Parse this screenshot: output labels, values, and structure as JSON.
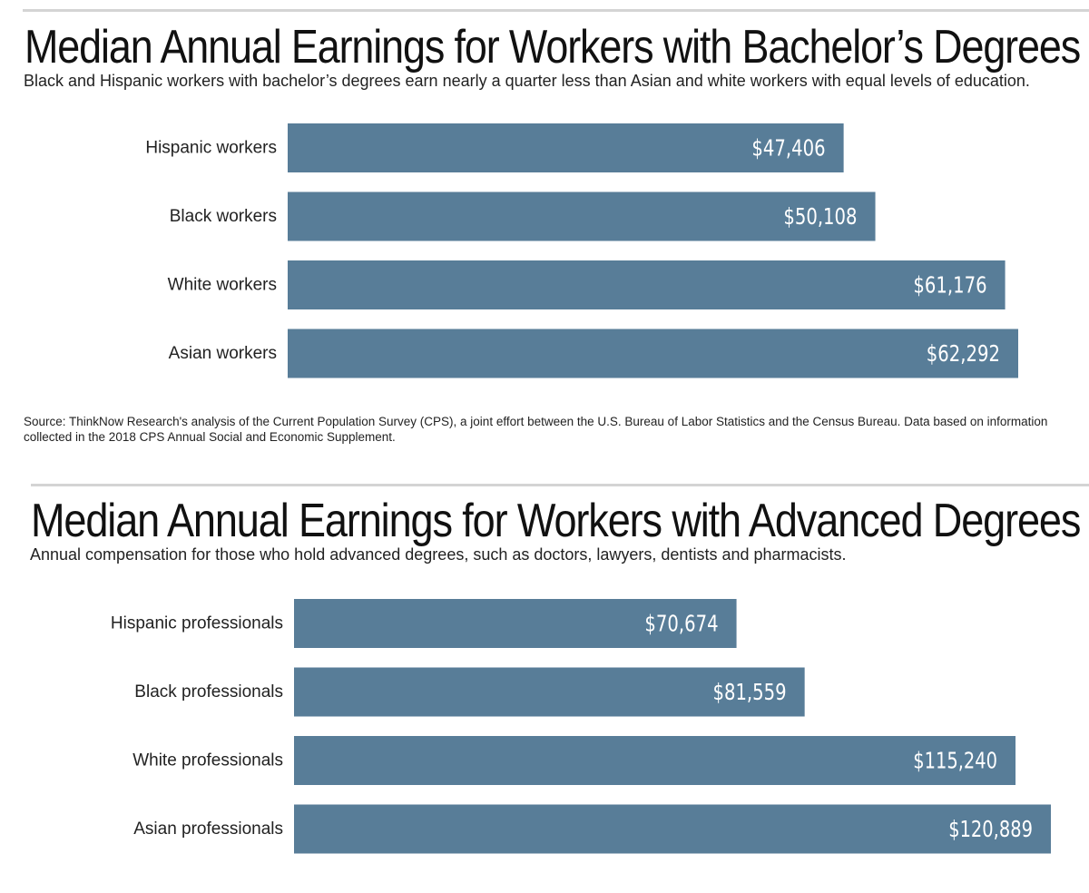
{
  "colors": {
    "bar": "#587d98",
    "bar_label": "#ffffff",
    "rule": "#d4d4d4"
  },
  "charts": [
    {
      "title": "Median Annual Earnings for Workers with Bachelor’s Degrees",
      "subtitle": "Black and Hispanic workers with bachelor’s degrees earn nearly a quarter less than Asian and white workers with equal levels of education.",
      "source": "Source: ThinkNow Research's analysis of the Current Population Survey (CPS), a joint effort between the U.S. Bureau of Labor Statistics and the Census Bureau. Data based on information collected in the 2018 CPS Annual Social and Economic Supplement."
    },
    {
      "title": "Median Annual Earnings for Workers with Advanced Degrees",
      "subtitle": "Annual compensation for those who hold advanced degrees, such as doctors, lawyers, dentists and pharmacists."
    }
  ],
  "chart_data": [
    {
      "type": "bar",
      "orientation": "horizontal",
      "title": "Median Annual Earnings for Workers with Bachelor’s Degrees",
      "categories": [
        "Hispanic workers",
        "Black workers",
        "White workers",
        "Asian workers"
      ],
      "values": [
        47406,
        50108,
        61176,
        62292
      ],
      "value_labels": [
        "$47,406",
        "$50,108",
        "$61,176",
        "$62,292"
      ],
      "xlim": [
        0,
        62292
      ],
      "grid": false
    },
    {
      "type": "bar",
      "orientation": "horizontal",
      "title": "Median Annual Earnings for Workers with Advanced Degrees",
      "categories": [
        "Hispanic professionals",
        "Black professionals",
        "White professionals",
        "Asian professionals"
      ],
      "values": [
        70674,
        81559,
        115240,
        120889
      ],
      "value_labels": [
        "$70,674",
        "$81,559",
        "$115,240",
        "$120,889"
      ],
      "xlim": [
        0,
        120889
      ],
      "grid": false
    }
  ]
}
